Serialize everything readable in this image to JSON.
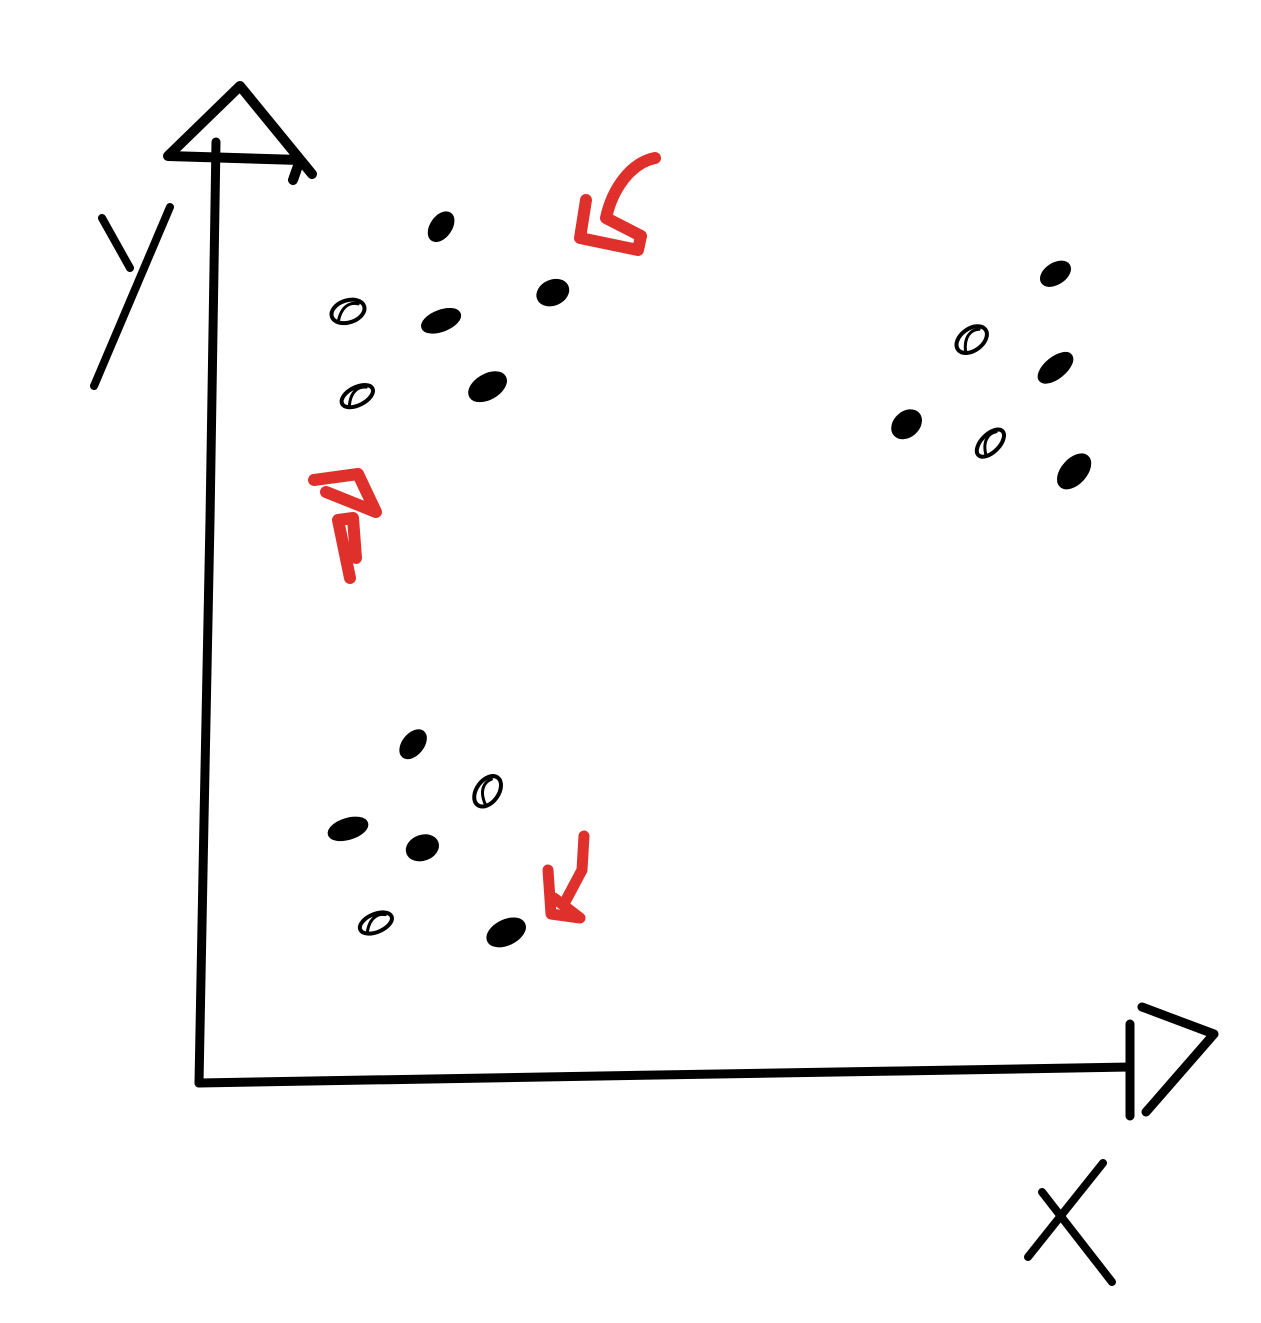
{
  "colors": {
    "ink": "#000000",
    "accent": "#e0302b",
    "background": "#ffffff"
  },
  "chart_data": {
    "type": "scatter",
    "title": "",
    "xlabel": "X",
    "ylabel": "Y",
    "xlim": [
      0,
      10
    ],
    "ylim": [
      0,
      10
    ],
    "grid": false,
    "legend": "none",
    "series": [
      {
        "points": [
          {
            "x": 2.6,
            "y": 9.1
          },
          {
            "x": 1.6,
            "y": 8.2
          },
          {
            "x": 2.6,
            "y": 8.1
          },
          {
            "x": 3.8,
            "y": 8.4
          },
          {
            "x": 1.7,
            "y": 7.3
          },
          {
            "x": 3.1,
            "y": 7.4
          },
          {
            "x": 9.2,
            "y": 8.6
          },
          {
            "x": 8.3,
            "y": 7.9
          },
          {
            "x": 9.2,
            "y": 7.6
          },
          {
            "x": 7.6,
            "y": 7.0
          },
          {
            "x": 8.5,
            "y": 6.8
          },
          {
            "x": 9.4,
            "y": 6.5
          },
          {
            "x": 2.3,
            "y": 3.6
          },
          {
            "x": 3.1,
            "y": 3.1
          },
          {
            "x": 1.6,
            "y": 2.7
          },
          {
            "x": 2.4,
            "y": 2.5
          },
          {
            "x": 1.9,
            "y": 1.7
          },
          {
            "x": 3.3,
            "y": 1.6
          }
        ]
      }
    ]
  }
}
